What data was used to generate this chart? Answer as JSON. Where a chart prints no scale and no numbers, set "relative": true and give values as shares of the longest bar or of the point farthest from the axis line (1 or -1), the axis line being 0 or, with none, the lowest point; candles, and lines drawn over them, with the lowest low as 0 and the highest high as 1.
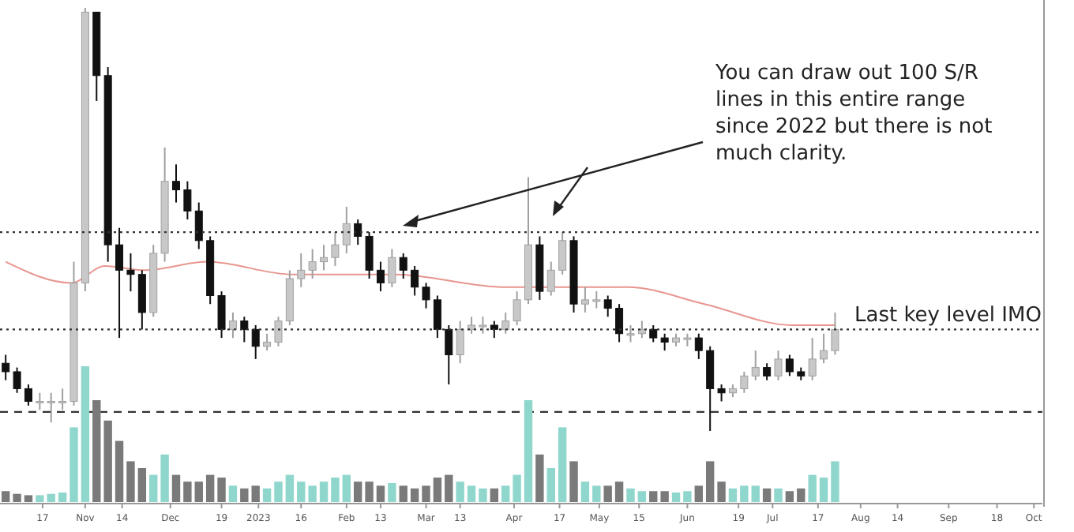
{
  "chart_data": [
    {
      "type": "candlestick",
      "relative": true,
      "xlim": [
        "2022-10-02",
        "2023-10-04"
      ],
      "x": [
        "2022-10-04",
        "2022-10-08",
        "2022-10-12",
        "2022-10-16",
        "2022-10-20",
        "2022-10-24",
        "2022-10-28",
        "2022-11-01",
        "2022-11-05",
        "2022-11-09",
        "2022-11-13",
        "2022-11-17",
        "2022-11-21",
        "2022-11-25",
        "2022-11-29",
        "2022-12-03",
        "2022-12-07",
        "2022-12-11",
        "2022-12-15",
        "2022-12-19",
        "2022-12-23",
        "2022-12-27",
        "2022-12-31",
        "2023-01-04",
        "2023-01-08",
        "2023-01-12",
        "2023-01-16",
        "2023-01-20",
        "2023-01-24",
        "2023-01-28",
        "2023-02-01",
        "2023-02-05",
        "2023-02-09",
        "2023-02-13",
        "2023-02-17",
        "2023-02-21",
        "2023-02-25",
        "2023-03-01",
        "2023-03-05",
        "2023-03-09",
        "2023-03-13",
        "2023-03-17",
        "2023-03-21",
        "2023-03-25",
        "2023-03-29",
        "2023-04-02",
        "2023-04-06",
        "2023-04-10",
        "2023-04-14",
        "2023-04-18",
        "2023-04-22",
        "2023-04-26",
        "2023-04-30",
        "2023-05-04",
        "2023-05-08",
        "2023-05-12",
        "2023-05-16",
        "2023-05-20",
        "2023-05-24",
        "2023-05-28",
        "2023-06-01",
        "2023-06-05",
        "2023-06-09",
        "2023-06-13",
        "2023-06-17",
        "2023-06-21",
        "2023-06-25",
        "2023-06-29",
        "2023-07-03",
        "2023-07-07",
        "2023-07-11",
        "2023-07-15",
        "2023-07-19",
        "2023-07-23"
      ],
      "ohlc": [
        [
          0.16,
          0.18,
          0.12,
          0.14
        ],
        [
          0.14,
          0.15,
          0.09,
          0.1
        ],
        [
          0.1,
          0.11,
          0.06,
          0.07
        ],
        [
          0.07,
          0.09,
          0.05,
          0.07
        ],
        [
          0.07,
          0.09,
          0.02,
          0.07
        ],
        [
          0.07,
          0.1,
          0.05,
          0.07
        ],
        [
          0.07,
          0.4,
          0.06,
          0.35
        ],
        [
          0.35,
          1.0,
          0.33,
          0.99
        ],
        [
          0.99,
          0.99,
          0.78,
          0.84
        ],
        [
          0.84,
          0.86,
          0.4,
          0.44
        ],
        [
          0.44,
          0.48,
          0.22,
          0.38
        ],
        [
          0.38,
          0.42,
          0.33,
          0.37
        ],
        [
          0.37,
          0.38,
          0.24,
          0.28
        ],
        [
          0.28,
          0.44,
          0.27,
          0.42
        ],
        [
          0.42,
          0.67,
          0.4,
          0.59
        ],
        [
          0.59,
          0.63,
          0.54,
          0.57
        ],
        [
          0.57,
          0.59,
          0.5,
          0.52
        ],
        [
          0.52,
          0.54,
          0.43,
          0.45
        ],
        [
          0.45,
          0.46,
          0.3,
          0.32
        ],
        [
          0.32,
          0.33,
          0.22,
          0.24
        ],
        [
          0.24,
          0.28,
          0.22,
          0.26
        ],
        [
          0.26,
          0.27,
          0.21,
          0.24
        ],
        [
          0.24,
          0.25,
          0.17,
          0.2
        ],
        [
          0.2,
          0.23,
          0.19,
          0.21
        ],
        [
          0.21,
          0.27,
          0.2,
          0.26
        ],
        [
          0.26,
          0.38,
          0.25,
          0.36
        ],
        [
          0.36,
          0.42,
          0.34,
          0.38
        ],
        [
          0.38,
          0.43,
          0.36,
          0.4
        ],
        [
          0.4,
          0.44,
          0.38,
          0.41
        ],
        [
          0.41,
          0.47,
          0.39,
          0.44
        ],
        [
          0.44,
          0.53,
          0.42,
          0.49
        ],
        [
          0.49,
          0.5,
          0.44,
          0.46
        ],
        [
          0.46,
          0.47,
          0.36,
          0.38
        ],
        [
          0.38,
          0.4,
          0.33,
          0.35
        ],
        [
          0.35,
          0.43,
          0.34,
          0.41
        ],
        [
          0.41,
          0.42,
          0.36,
          0.38
        ],
        [
          0.38,
          0.39,
          0.32,
          0.34
        ],
        [
          0.34,
          0.35,
          0.29,
          0.31
        ],
        [
          0.31,
          0.32,
          0.22,
          0.24
        ],
        [
          0.24,
          0.25,
          0.11,
          0.18
        ],
        [
          0.18,
          0.26,
          0.16,
          0.24
        ],
        [
          0.24,
          0.27,
          0.23,
          0.25
        ],
        [
          0.25,
          0.27,
          0.23,
          0.25
        ],
        [
          0.25,
          0.26,
          0.22,
          0.24
        ],
        [
          0.24,
          0.28,
          0.23,
          0.26
        ],
        [
          0.26,
          0.33,
          0.25,
          0.31
        ],
        [
          0.31,
          0.6,
          0.3,
          0.44
        ],
        [
          0.44,
          0.46,
          0.31,
          0.33
        ],
        [
          0.33,
          0.4,
          0.32,
          0.38
        ],
        [
          0.38,
          0.47,
          0.37,
          0.45
        ],
        [
          0.45,
          0.46,
          0.28,
          0.3
        ],
        [
          0.3,
          0.34,
          0.28,
          0.31
        ],
        [
          0.31,
          0.33,
          0.29,
          0.31
        ],
        [
          0.31,
          0.32,
          0.27,
          0.29
        ],
        [
          0.29,
          0.3,
          0.21,
          0.23
        ],
        [
          0.23,
          0.25,
          0.21,
          0.23
        ],
        [
          0.23,
          0.26,
          0.22,
          0.24
        ],
        [
          0.24,
          0.25,
          0.21,
          0.22
        ],
        [
          0.22,
          0.23,
          0.19,
          0.21
        ],
        [
          0.21,
          0.23,
          0.2,
          0.22
        ],
        [
          0.22,
          0.23,
          0.2,
          0.22
        ],
        [
          0.22,
          0.23,
          0.17,
          0.19
        ],
        [
          0.19,
          0.2,
          0.0,
          0.1
        ],
        [
          0.1,
          0.11,
          0.07,
          0.09
        ],
        [
          0.09,
          0.11,
          0.08,
          0.1
        ],
        [
          0.1,
          0.14,
          0.09,
          0.13
        ],
        [
          0.13,
          0.19,
          0.12,
          0.15
        ],
        [
          0.15,
          0.16,
          0.12,
          0.13
        ],
        [
          0.13,
          0.19,
          0.12,
          0.17
        ],
        [
          0.17,
          0.18,
          0.13,
          0.14
        ],
        [
          0.14,
          0.15,
          0.12,
          0.13
        ],
        [
          0.13,
          0.22,
          0.12,
          0.17
        ],
        [
          0.17,
          0.23,
          0.16,
          0.19
        ],
        [
          0.19,
          0.28,
          0.18,
          0.24
        ]
      ],
      "colors": [
        "#111111",
        "#111111",
        "#111111",
        "#c8c8c8",
        "#c8c8c8",
        "#c8c8c8",
        "#c8c8c8",
        "#c8c8c8",
        "#111111",
        "#111111",
        "#111111",
        "#111111",
        "#111111",
        "#c8c8c8",
        "#c8c8c8",
        "#111111",
        "#111111",
        "#111111",
        "#111111",
        "#111111",
        "#c8c8c8",
        "#111111",
        "#111111",
        "#c8c8c8",
        "#c8c8c8",
        "#c8c8c8",
        "#c8c8c8",
        "#c8c8c8",
        "#c8c8c8",
        "#c8c8c8",
        "#c8c8c8",
        "#111111",
        "#111111",
        "#111111",
        "#c8c8c8",
        "#111111",
        "#111111",
        "#111111",
        "#111111",
        "#111111",
        "#c8c8c8",
        "#c8c8c8",
        "#c8c8c8",
        "#111111",
        "#c8c8c8",
        "#c8c8c8",
        "#c8c8c8",
        "#111111",
        "#c8c8c8",
        "#c8c8c8",
        "#111111",
        "#c8c8c8",
        "#c8c8c8",
        "#111111",
        "#111111",
        "#c8c8c8",
        "#c8c8c8",
        "#111111",
        "#111111",
        "#c8c8c8",
        "#c8c8c8",
        "#111111",
        "#111111",
        "#111111",
        "#c8c8c8",
        "#c8c8c8",
        "#c8c8c8",
        "#111111",
        "#c8c8c8",
        "#111111",
        "#111111",
        "#c8c8c8",
        "#c8c8c8",
        "#c8c8c8"
      ],
      "series": [
        {
          "type": "line",
          "color": "#e8968f",
          "x": [
            "2022-10-04",
            "2022-10-27",
            "2022-11-08",
            "2022-11-22",
            "2022-12-14",
            "2023-01-13",
            "2023-02-01",
            "2023-02-18",
            "2023-03-29",
            "2023-04-17",
            "2023-05-11",
            "2023-06-07",
            "2023-07-08",
            "2023-07-23"
          ],
          "values": [
            0.4,
            0.35,
            0.39,
            0.38,
            0.4,
            0.37,
            0.37,
            0.37,
            0.34,
            0.34,
            0.34,
            0.3,
            0.25,
            0.25
          ]
        }
      ],
      "ref_lines": [
        {
          "axis": "y",
          "value": 0.47,
          "line_style": "dotted",
          "color": "#333333"
        },
        {
          "axis": "y",
          "value": 0.24,
          "line_style": "dotted",
          "color": "#333333"
        },
        {
          "axis": "y",
          "value": 0.045,
          "line_style": "dashed",
          "color": "#333333"
        }
      ],
      "annotations": [
        "You can draw out 100 S/R lines in this entire range since 2022 but there is not much clarity.",
        "Last key level IMO"
      ]
    },
    {
      "type": "bar",
      "relative": true,
      "xlim": [
        "2022-10-02",
        "2023-10-04"
      ],
      "x": [
        "2022-10-04",
        "2022-10-08",
        "2022-10-12",
        "2022-10-16",
        "2022-10-20",
        "2022-10-24",
        "2022-10-28",
        "2022-11-01",
        "2022-11-05",
        "2022-11-09",
        "2022-11-13",
        "2022-11-17",
        "2022-11-21",
        "2022-11-25",
        "2022-11-29",
        "2022-12-03",
        "2022-12-07",
        "2022-12-11",
        "2022-12-15",
        "2022-12-19",
        "2022-12-23",
        "2022-12-27",
        "2022-12-31",
        "2023-01-04",
        "2023-01-08",
        "2023-01-12",
        "2023-01-16",
        "2023-01-20",
        "2023-01-24",
        "2023-01-28",
        "2023-02-01",
        "2023-02-05",
        "2023-02-09",
        "2023-02-13",
        "2023-02-17",
        "2023-02-21",
        "2023-02-25",
        "2023-03-01",
        "2023-03-05",
        "2023-03-09",
        "2023-03-13",
        "2023-03-17",
        "2023-03-21",
        "2023-03-25",
        "2023-03-29",
        "2023-04-02",
        "2023-04-06",
        "2023-04-10",
        "2023-04-14",
        "2023-04-18",
        "2023-04-22",
        "2023-04-26",
        "2023-04-30",
        "2023-05-04",
        "2023-05-08",
        "2023-05-12",
        "2023-05-16",
        "2023-05-20",
        "2023-05-24",
        "2023-05-28",
        "2023-06-01",
        "2023-06-05",
        "2023-06-09",
        "2023-06-13",
        "2023-06-17",
        "2023-06-21",
        "2023-06-25",
        "2023-06-29",
        "2023-07-03",
        "2023-07-07",
        "2023-07-11",
        "2023-07-15",
        "2023-07-19",
        "2023-07-23"
      ],
      "values": [
        0.08,
        0.06,
        0.05,
        0.05,
        0.06,
        0.07,
        0.55,
        1.0,
        0.75,
        0.6,
        0.45,
        0.3,
        0.25,
        0.2,
        0.35,
        0.2,
        0.15,
        0.15,
        0.2,
        0.18,
        0.12,
        0.1,
        0.12,
        0.1,
        0.15,
        0.2,
        0.15,
        0.12,
        0.15,
        0.18,
        0.2,
        0.15,
        0.15,
        0.12,
        0.14,
        0.12,
        0.1,
        0.12,
        0.18,
        0.2,
        0.15,
        0.12,
        0.1,
        0.1,
        0.12,
        0.2,
        0.75,
        0.35,
        0.25,
        0.55,
        0.3,
        0.15,
        0.12,
        0.12,
        0.15,
        0.1,
        0.08,
        0.08,
        0.08,
        0.07,
        0.08,
        0.12,
        0.3,
        0.15,
        0.1,
        0.12,
        0.12,
        0.1,
        0.1,
        0.08,
        0.1,
        0.2,
        0.18,
        0.3
      ],
      "colors": [
        "#7a7a7a",
        "#7a7a7a",
        "#7a7a7a",
        "#8fd6cc",
        "#8fd6cc",
        "#8fd6cc",
        "#8fd6cc",
        "#8fd6cc",
        "#7a7a7a",
        "#7a7a7a",
        "#7a7a7a",
        "#7a7a7a",
        "#7a7a7a",
        "#8fd6cc",
        "#8fd6cc",
        "#7a7a7a",
        "#7a7a7a",
        "#7a7a7a",
        "#7a7a7a",
        "#7a7a7a",
        "#8fd6cc",
        "#7a7a7a",
        "#7a7a7a",
        "#8fd6cc",
        "#8fd6cc",
        "#8fd6cc",
        "#8fd6cc",
        "#8fd6cc",
        "#8fd6cc",
        "#8fd6cc",
        "#8fd6cc",
        "#7a7a7a",
        "#7a7a7a",
        "#7a7a7a",
        "#8fd6cc",
        "#7a7a7a",
        "#7a7a7a",
        "#7a7a7a",
        "#7a7a7a",
        "#7a7a7a",
        "#8fd6cc",
        "#8fd6cc",
        "#8fd6cc",
        "#7a7a7a",
        "#8fd6cc",
        "#8fd6cc",
        "#8fd6cc",
        "#7a7a7a",
        "#8fd6cc",
        "#8fd6cc",
        "#7a7a7a",
        "#8fd6cc",
        "#8fd6cc",
        "#7a7a7a",
        "#7a7a7a",
        "#8fd6cc",
        "#8fd6cc",
        "#7a7a7a",
        "#7a7a7a",
        "#8fd6cc",
        "#8fd6cc",
        "#7a7a7a",
        "#7a7a7a",
        "#7a7a7a",
        "#8fd6cc",
        "#8fd6cc",
        "#8fd6cc",
        "#7a7a7a",
        "#8fd6cc",
        "#7a7a7a",
        "#7a7a7a",
        "#8fd6cc",
        "#8fd6cc",
        "#8fd6cc"
      ],
      "xticks": [
        {
          "value": "2022-10-17",
          "label": "17"
        },
        {
          "value": "2022-11-01",
          "label": "Nov"
        },
        {
          "value": "2022-11-14",
          "label": "14"
        },
        {
          "value": "2022-12-01",
          "label": "Dec"
        },
        {
          "value": "2022-12-19",
          "label": "19"
        },
        {
          "value": "2023-01-01",
          "label": "2023"
        },
        {
          "value": "2023-01-16",
          "label": "16"
        },
        {
          "value": "2023-02-01",
          "label": "Feb"
        },
        {
          "value": "2023-02-13",
          "label": "13"
        },
        {
          "value": "2023-03-01",
          "label": "Mar"
        },
        {
          "value": "2023-03-13",
          "label": "13"
        },
        {
          "value": "2023-04-01",
          "label": "Apr"
        },
        {
          "value": "2023-04-17",
          "label": "17"
        },
        {
          "value": "2023-05-01",
          "label": "May"
        },
        {
          "value": "2023-05-15",
          "label": "15"
        },
        {
          "value": "2023-06-01",
          "label": "Jun"
        },
        {
          "value": "2023-06-19",
          "label": "19"
        },
        {
          "value": "2023-07-01",
          "label": "Jul"
        },
        {
          "value": "2023-07-17",
          "label": "17"
        },
        {
          "value": "2023-08-01",
          "label": "Aug"
        },
        {
          "value": "2023-08-14",
          "label": "14"
        },
        {
          "value": "2023-09-01",
          "label": "Sep"
        },
        {
          "value": "2023-09-18",
          "label": "18"
        },
        {
          "value": "2023-10-01",
          "label": "Oct"
        }
      ]
    }
  ]
}
